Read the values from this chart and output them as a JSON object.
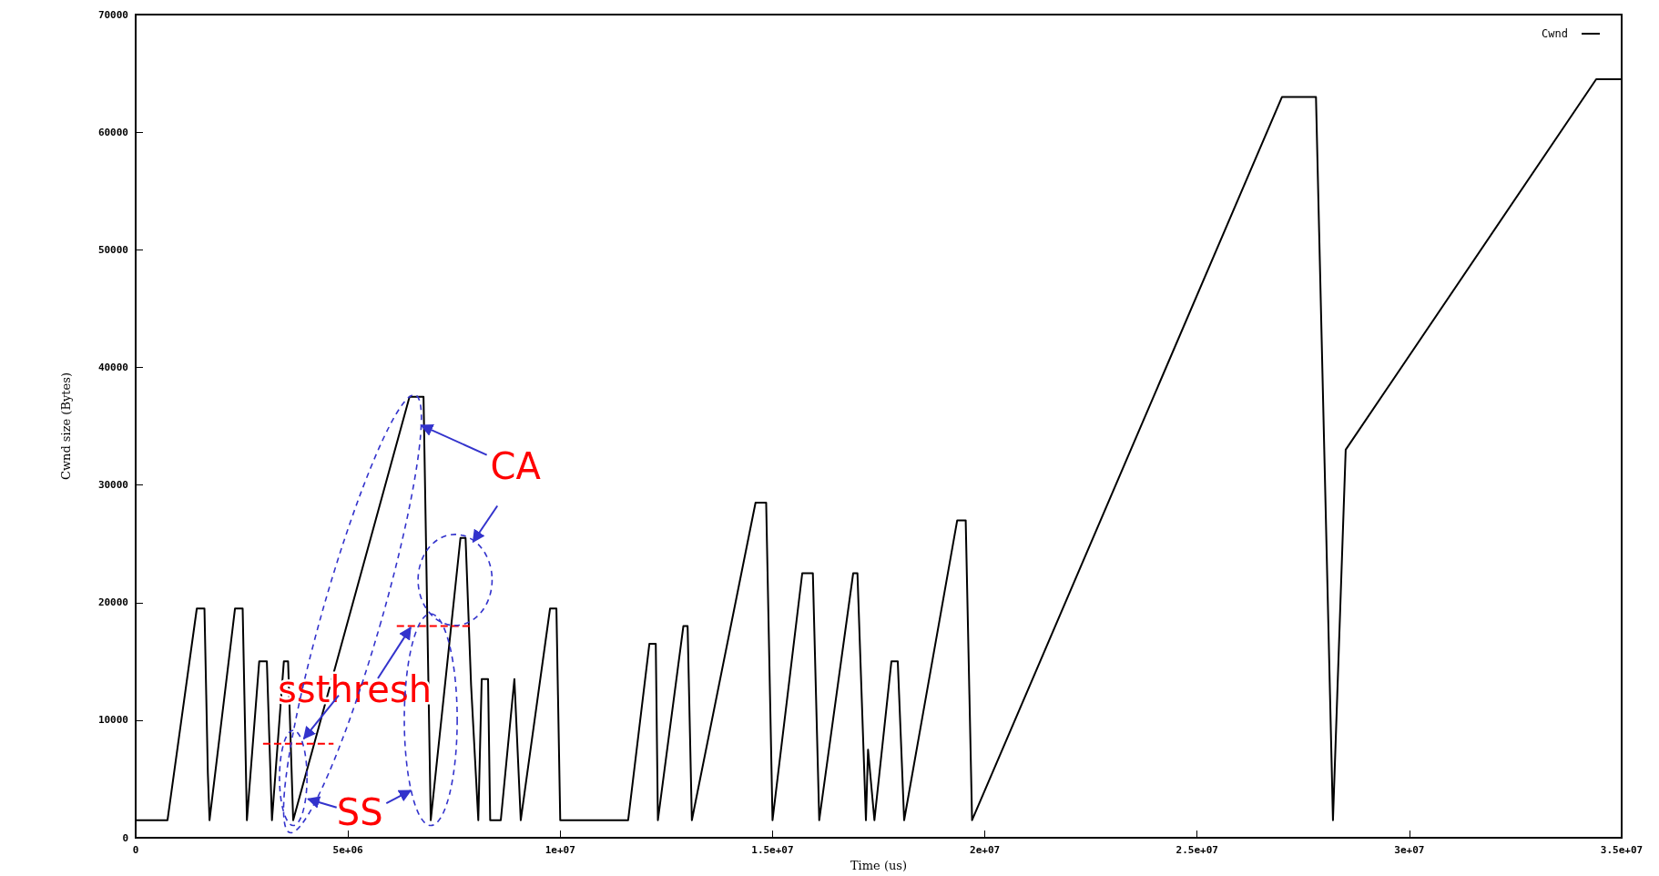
{
  "chart_data": {
    "type": "line",
    "xlabel": "Time (us)",
    "ylabel": "Cwnd size (Bytes)",
    "xlim": [
      0,
      35000000
    ],
    "xticks": [
      0,
      {
        "value": 5000000,
        "label": "5e+06"
      },
      {
        "value": 10000000,
        "label": "1e+07"
      },
      {
        "value": 15000000,
        "label": "1.5e+07"
      },
      {
        "value": 20000000,
        "label": "2e+07"
      },
      {
        "value": 25000000,
        "label": "2.5e+07"
      },
      {
        "value": 30000000,
        "label": "3e+07"
      },
      {
        "value": 35000000,
        "label": "3.5e+07"
      }
    ],
    "ylim": [
      0,
      70000
    ],
    "yticks": [
      0,
      10000,
      20000,
      30000,
      40000,
      50000,
      60000,
      70000
    ],
    "grid": false,
    "legend": "top right",
    "marker": "none",
    "line_style": "solid",
    "series": [
      {
        "name": "Cwnd",
        "color": "#000000",
        "x": [
          0,
          750000,
          1440000,
          1620000,
          1700000,
          1740000,
          2340000,
          2520000,
          2620000,
          2910000,
          3090000,
          3210000,
          3490000,
          3590000,
          3710000,
          6450000,
          6780000,
          6950000,
          7650000,
          7770000,
          7900000,
          8070000,
          8150000,
          8300000,
          8350000,
          8600000,
          8920000,
          9070000,
          9760000,
          9910000,
          10000000,
          11600000,
          12100000,
          12250000,
          12300000,
          12900000,
          13000000,
          13100000,
          14600000,
          14850000,
          15000000,
          15700000,
          15950000,
          16100000,
          16900000,
          17000000,
          17200000,
          17250000,
          17400000,
          17800000,
          17950000,
          18100000,
          19350000,
          19550000,
          19700000,
          27000000,
          27800000,
          28200000,
          28500000,
          34400000,
          35000000
        ],
        "values": [
          1500,
          1500,
          19500,
          19500,
          5500,
          1500,
          19500,
          19500,
          1500,
          15000,
          15000,
          1500,
          15000,
          15000,
          1500,
          37500,
          37500,
          1500,
          25500,
          25500,
          13000,
          1500,
          13500,
          13500,
          1500,
          1500,
          13500,
          1500,
          19500,
          19500,
          1500,
          1500,
          16500,
          16500,
          1500,
          18000,
          18000,
          1500,
          28500,
          28500,
          1500,
          22500,
          22500,
          1500,
          22500,
          22500,
          1500,
          7500,
          1500,
          15000,
          15000,
          1500,
          27000,
          27000,
          1500,
          63000,
          63000,
          1500,
          33000,
          64500,
          64500
        ]
      },
      {
        "color": "#ff0000",
        "line_style": "dashed",
        "x": [
          3000000,
          4660000
        ],
        "values": [
          8000,
          8000
        ]
      },
      {
        "color": "#ff0000",
        "line_style": "dashed",
        "x": [
          6150000,
          7900000
        ],
        "values": [
          18000,
          18000
        ]
      }
    ],
    "annotations": [
      {
        "text": "CA",
        "x": 6730000,
        "y": 35200
      },
      {
        "text": "ssthresh",
        "x": 6480000,
        "y": 18000
      },
      "SS"
    ]
  }
}
